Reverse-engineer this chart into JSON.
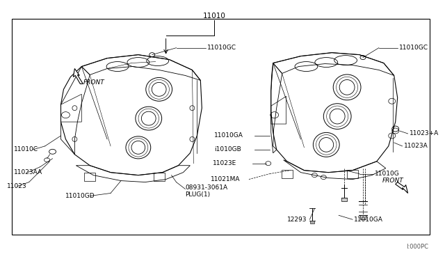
{
  "bg_color": "#ffffff",
  "line_color": "#000000",
  "gray_line": "#888888",
  "border": [
    0.028,
    0.07,
    0.972,
    0.91
  ],
  "footer": "I:000PC",
  "fs_label": 6.5,
  "fs_title": 7.5
}
